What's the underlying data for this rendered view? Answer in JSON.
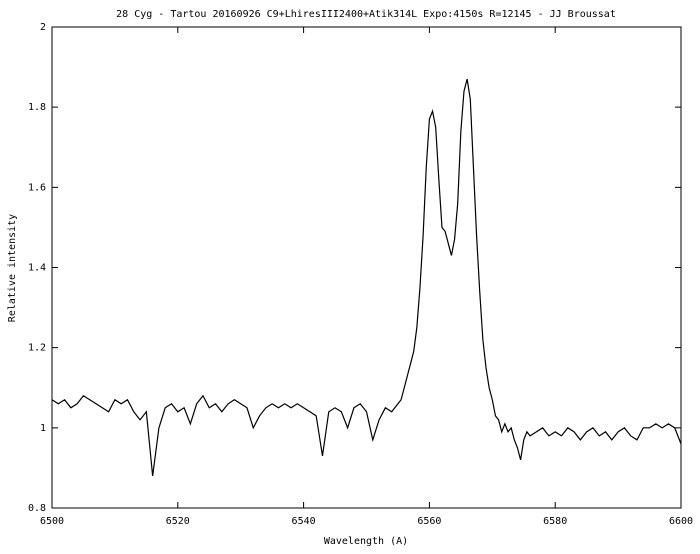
{
  "chart_data": {
    "type": "line",
    "title": "28 Cyg -  Tartou 20160926 C9+LhiresIII2400+Atik314L Expo:4150s R=12145  - JJ Broussat",
    "x_label": "Wavelength (A)",
    "y_label": "Relative intensity",
    "xlim": [
      6500,
      6600
    ],
    "xticks": [
      6500,
      6520,
      6540,
      6560,
      6580,
      6600
    ],
    "ylim": [
      0.8,
      2
    ],
    "yticks": [
      0.8,
      1,
      1.2,
      1.4,
      1.6,
      1.8,
      2
    ],
    "series": [
      {
        "color": "#000000",
        "x": [
          6500,
          6501,
          6502,
          6503,
          6504,
          6505,
          6506,
          6507,
          6508,
          6509,
          6510,
          6511,
          6512,
          6513,
          6514,
          6515,
          6516,
          6517,
          6518,
          6519,
          6520,
          6521,
          6522,
          6523,
          6524,
          6525,
          6526,
          6527,
          6528,
          6529,
          6530,
          6531,
          6532,
          6533,
          6534,
          6535,
          6536,
          6537,
          6538,
          6539,
          6540,
          6541,
          6542,
          6543,
          6544,
          6545,
          6546,
          6547,
          6548,
          6549,
          6550,
          6551,
          6552,
          6553,
          6554,
          6555,
          6555.5,
          6556,
          6556.5,
          6557,
          6557.5,
          6558,
          6558.5,
          6559,
          6559.5,
          6560,
          6560.5,
          6561,
          6561.5,
          6562,
          6562.5,
          6563,
          6563.5,
          6564,
          6564.5,
          6565,
          6565.5,
          6566,
          6566.5,
          6567,
          6567.5,
          6568,
          6568.5,
          6569,
          6569.5,
          6570,
          6570.5,
          6571,
          6571.5,
          6572,
          6572.5,
          6573,
          6573.5,
          6574,
          6574.5,
          6575,
          6575.5,
          6576,
          6577,
          6578,
          6579,
          6580,
          6581,
          6582,
          6583,
          6584,
          6585,
          6586,
          6587,
          6588,
          6589,
          6590,
          6591,
          6592,
          6593,
          6594,
          6595,
          6596,
          6597,
          6598,
          6599,
          6600
        ],
        "values": [
          1.07,
          1.06,
          1.07,
          1.05,
          1.06,
          1.08,
          1.07,
          1.06,
          1.05,
          1.04,
          1.07,
          1.06,
          1.07,
          1.04,
          1.02,
          1.04,
          0.88,
          1.0,
          1.05,
          1.06,
          1.04,
          1.05,
          1.01,
          1.06,
          1.08,
          1.05,
          1.06,
          1.04,
          1.06,
          1.07,
          1.06,
          1.05,
          1.0,
          1.03,
          1.05,
          1.06,
          1.05,
          1.06,
          1.05,
          1.06,
          1.05,
          1.04,
          1.03,
          0.93,
          1.04,
          1.05,
          1.04,
          1.0,
          1.05,
          1.06,
          1.04,
          0.97,
          1.02,
          1.05,
          1.04,
          1.06,
          1.07,
          1.1,
          1.13,
          1.16,
          1.19,
          1.25,
          1.35,
          1.48,
          1.65,
          1.77,
          1.79,
          1.75,
          1.62,
          1.5,
          1.49,
          1.46,
          1.43,
          1.47,
          1.56,
          1.74,
          1.84,
          1.87,
          1.82,
          1.65,
          1.48,
          1.34,
          1.22,
          1.15,
          1.1,
          1.07,
          1.03,
          1.02,
          0.99,
          1.01,
          0.99,
          1.0,
          0.97,
          0.95,
          0.92,
          0.97,
          0.99,
          0.98,
          0.99,
          1.0,
          0.98,
          0.99,
          0.98,
          1.0,
          0.99,
          0.97,
          0.99,
          1.0,
          0.98,
          0.99,
          0.97,
          0.99,
          1.0,
          0.98,
          0.97,
          1.0,
          1.0,
          1.01,
          1.0,
          1.01,
          1.0,
          0.96
        ]
      }
    ]
  }
}
